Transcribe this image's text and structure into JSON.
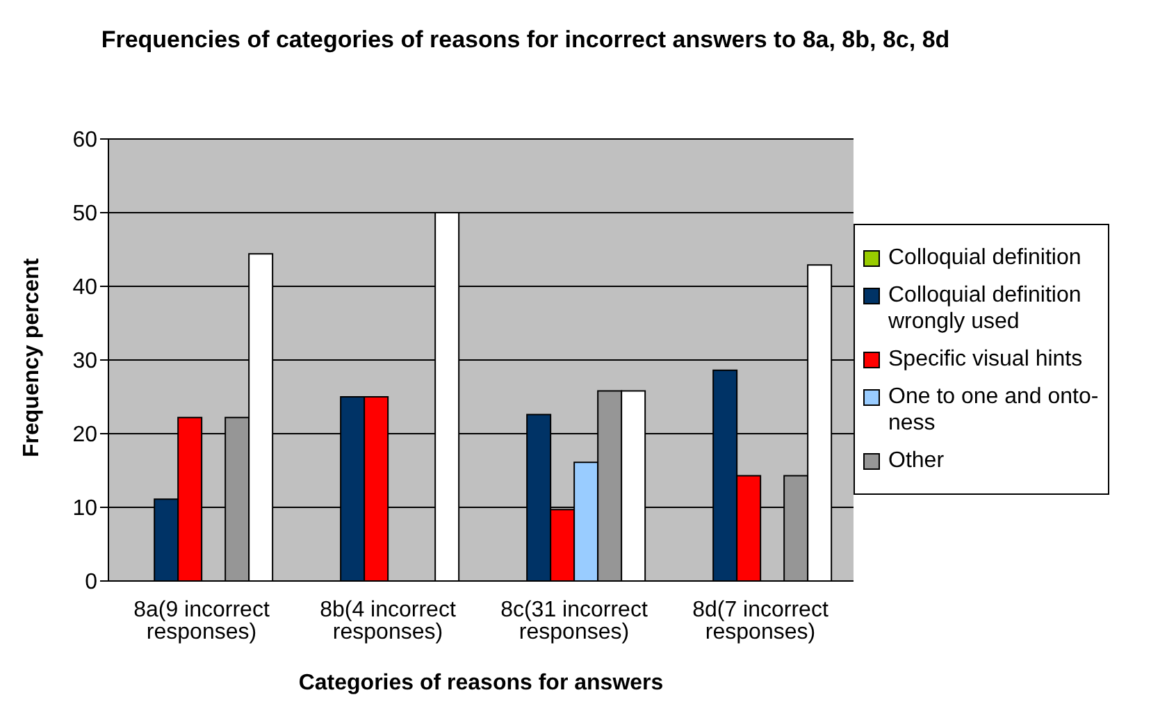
{
  "chart_data": {
    "type": "bar",
    "title": "Frequencies of categories of reasons for incorrect answers to 8a, 8b, 8c, 8d",
    "xlabel": "Categories of reasons for answers",
    "ylabel": "Frequency percent",
    "categories": [
      "8a(9 incorrect responses)",
      "8b(4 incorrect responses)",
      "8c(31 incorrect responses)",
      "8d(7 incorrect responses)"
    ],
    "series": [
      {
        "name": "Colloquial definition",
        "color": "#99cc00",
        "values": [
          0,
          0,
          0,
          0
        ]
      },
      {
        "name": "Colloquial definition wrongly used",
        "color": "#003366",
        "values": [
          11.1,
          25,
          22.6,
          28.6
        ]
      },
      {
        "name": "Specific visual hints",
        "color": "#ff0000",
        "values": [
          22.2,
          25,
          9.7,
          14.3
        ]
      },
      {
        "name": "One to one and onto-ness",
        "color": "#99ccff",
        "values": [
          0,
          0,
          16.1,
          0
        ]
      },
      {
        "name": "Other",
        "color": "#969696",
        "values": [
          22.2,
          0,
          25.8,
          14.3
        ]
      },
      {
        "color": "#ffffff",
        "values": [
          44.4,
          50,
          25.8,
          42.9
        ]
      }
    ],
    "ylim": [
      0,
      60
    ],
    "yticks": [
      0,
      10,
      20,
      30,
      40,
      50,
      60
    ],
    "grid": "y",
    "legend": "right"
  }
}
